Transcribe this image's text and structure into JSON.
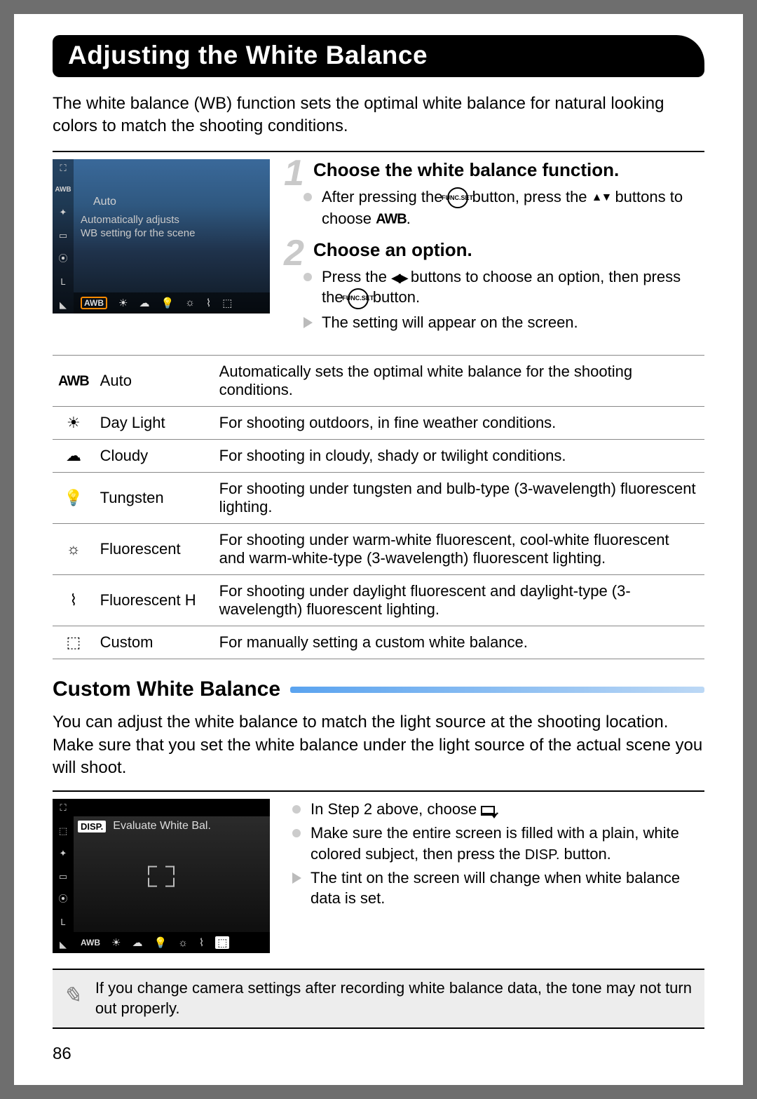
{
  "page_number": "86",
  "title": "Adjusting the White Balance",
  "intro": "The white balance (WB) function sets the optimal white balance for natural looking colors to match the shooting conditions.",
  "lcd1": {
    "mode_label": "Auto",
    "help_line1": "Automatically adjusts",
    "help_line2": "WB setting for the scene",
    "sidebar_icons": [
      "⛶",
      "AWB",
      "✦",
      "▭",
      "⦿",
      "L",
      "◣"
    ],
    "bottom_icons": [
      "AWB",
      "☀",
      "☁",
      "💡",
      "☼",
      "⌇",
      "⬚"
    ]
  },
  "steps": [
    {
      "title": "Choose the white balance function.",
      "items": [
        {
          "type": "dot",
          "html": "After pressing the <span class='func-ico'><span>FUNC.</span><span>SET</span></span> button, press the <span class='ico tri-updown'></span> buttons to choose <span class='awb-ico'>AWB</span>."
        }
      ]
    },
    {
      "title": "Choose an option.",
      "items": [
        {
          "type": "dot",
          "html": "Press the <span class='ico tri-lr'></span> buttons to choose an option, then press the <span class='func-ico'><span>FUNC.</span><span>SET</span></span> button."
        },
        {
          "type": "arrow",
          "html": "The setting will appear on the screen."
        }
      ]
    }
  ],
  "modes": [
    {
      "icon": "AWB",
      "icon_class": "awb-ico",
      "label": "Auto",
      "desc": "Automatically sets the optimal white balance for the shooting conditions."
    },
    {
      "icon": "☀",
      "label": "Day Light",
      "desc": "For shooting outdoors, in fine weather conditions."
    },
    {
      "icon": "☁",
      "label": "Cloudy",
      "desc": "For shooting in cloudy, shady or twilight conditions."
    },
    {
      "icon": "💡",
      "label": "Tungsten",
      "desc": "For shooting under tungsten and bulb-type (3-wavelength) fluorescent lighting."
    },
    {
      "icon": "☼",
      "label": "Fluorescent",
      "desc": "For shooting under warm-white fluorescent, cool-white fluorescent and warm-white-type (3-wavelength) fluorescent lighting."
    },
    {
      "icon": "⌇",
      "label": "Fluorescent H",
      "desc": "For shooting under daylight fluorescent and daylight-type (3-wavelength) fluorescent lighting."
    },
    {
      "icon": "⬚",
      "label": "Custom",
      "desc": "For manually setting a custom white balance."
    }
  ],
  "custom": {
    "heading": "Custom White Balance",
    "body": "You can adjust the white balance to match the light source at the shooting location. Make sure that you set the white balance under the light source of the actual scene you will shoot.",
    "lcd": {
      "disp_label": "DISP.",
      "top_text": "Evaluate White Bal.",
      "sidebar_icons": [
        "⛶",
        "⬚",
        "✦",
        "▭",
        "⦿",
        "L",
        "◣"
      ],
      "bottom_icons": [
        "AWB",
        "☀",
        "☁",
        "💡",
        "☼",
        "⌇",
        "⬚"
      ]
    },
    "items": [
      {
        "type": "dot",
        "html": "In Step 2 above, choose <span class='custom-ico'></span>."
      },
      {
        "type": "dot",
        "html": "Make sure the entire screen is filled with a plain, white colored subject, then press the <span class='disp-btn'>DISP.</span> button."
      },
      {
        "type": "arrow",
        "html": "The tint on the screen will change when white balance data is set."
      }
    ]
  },
  "note": "If you change camera settings after recording white balance data, the tone may not turn out properly."
}
